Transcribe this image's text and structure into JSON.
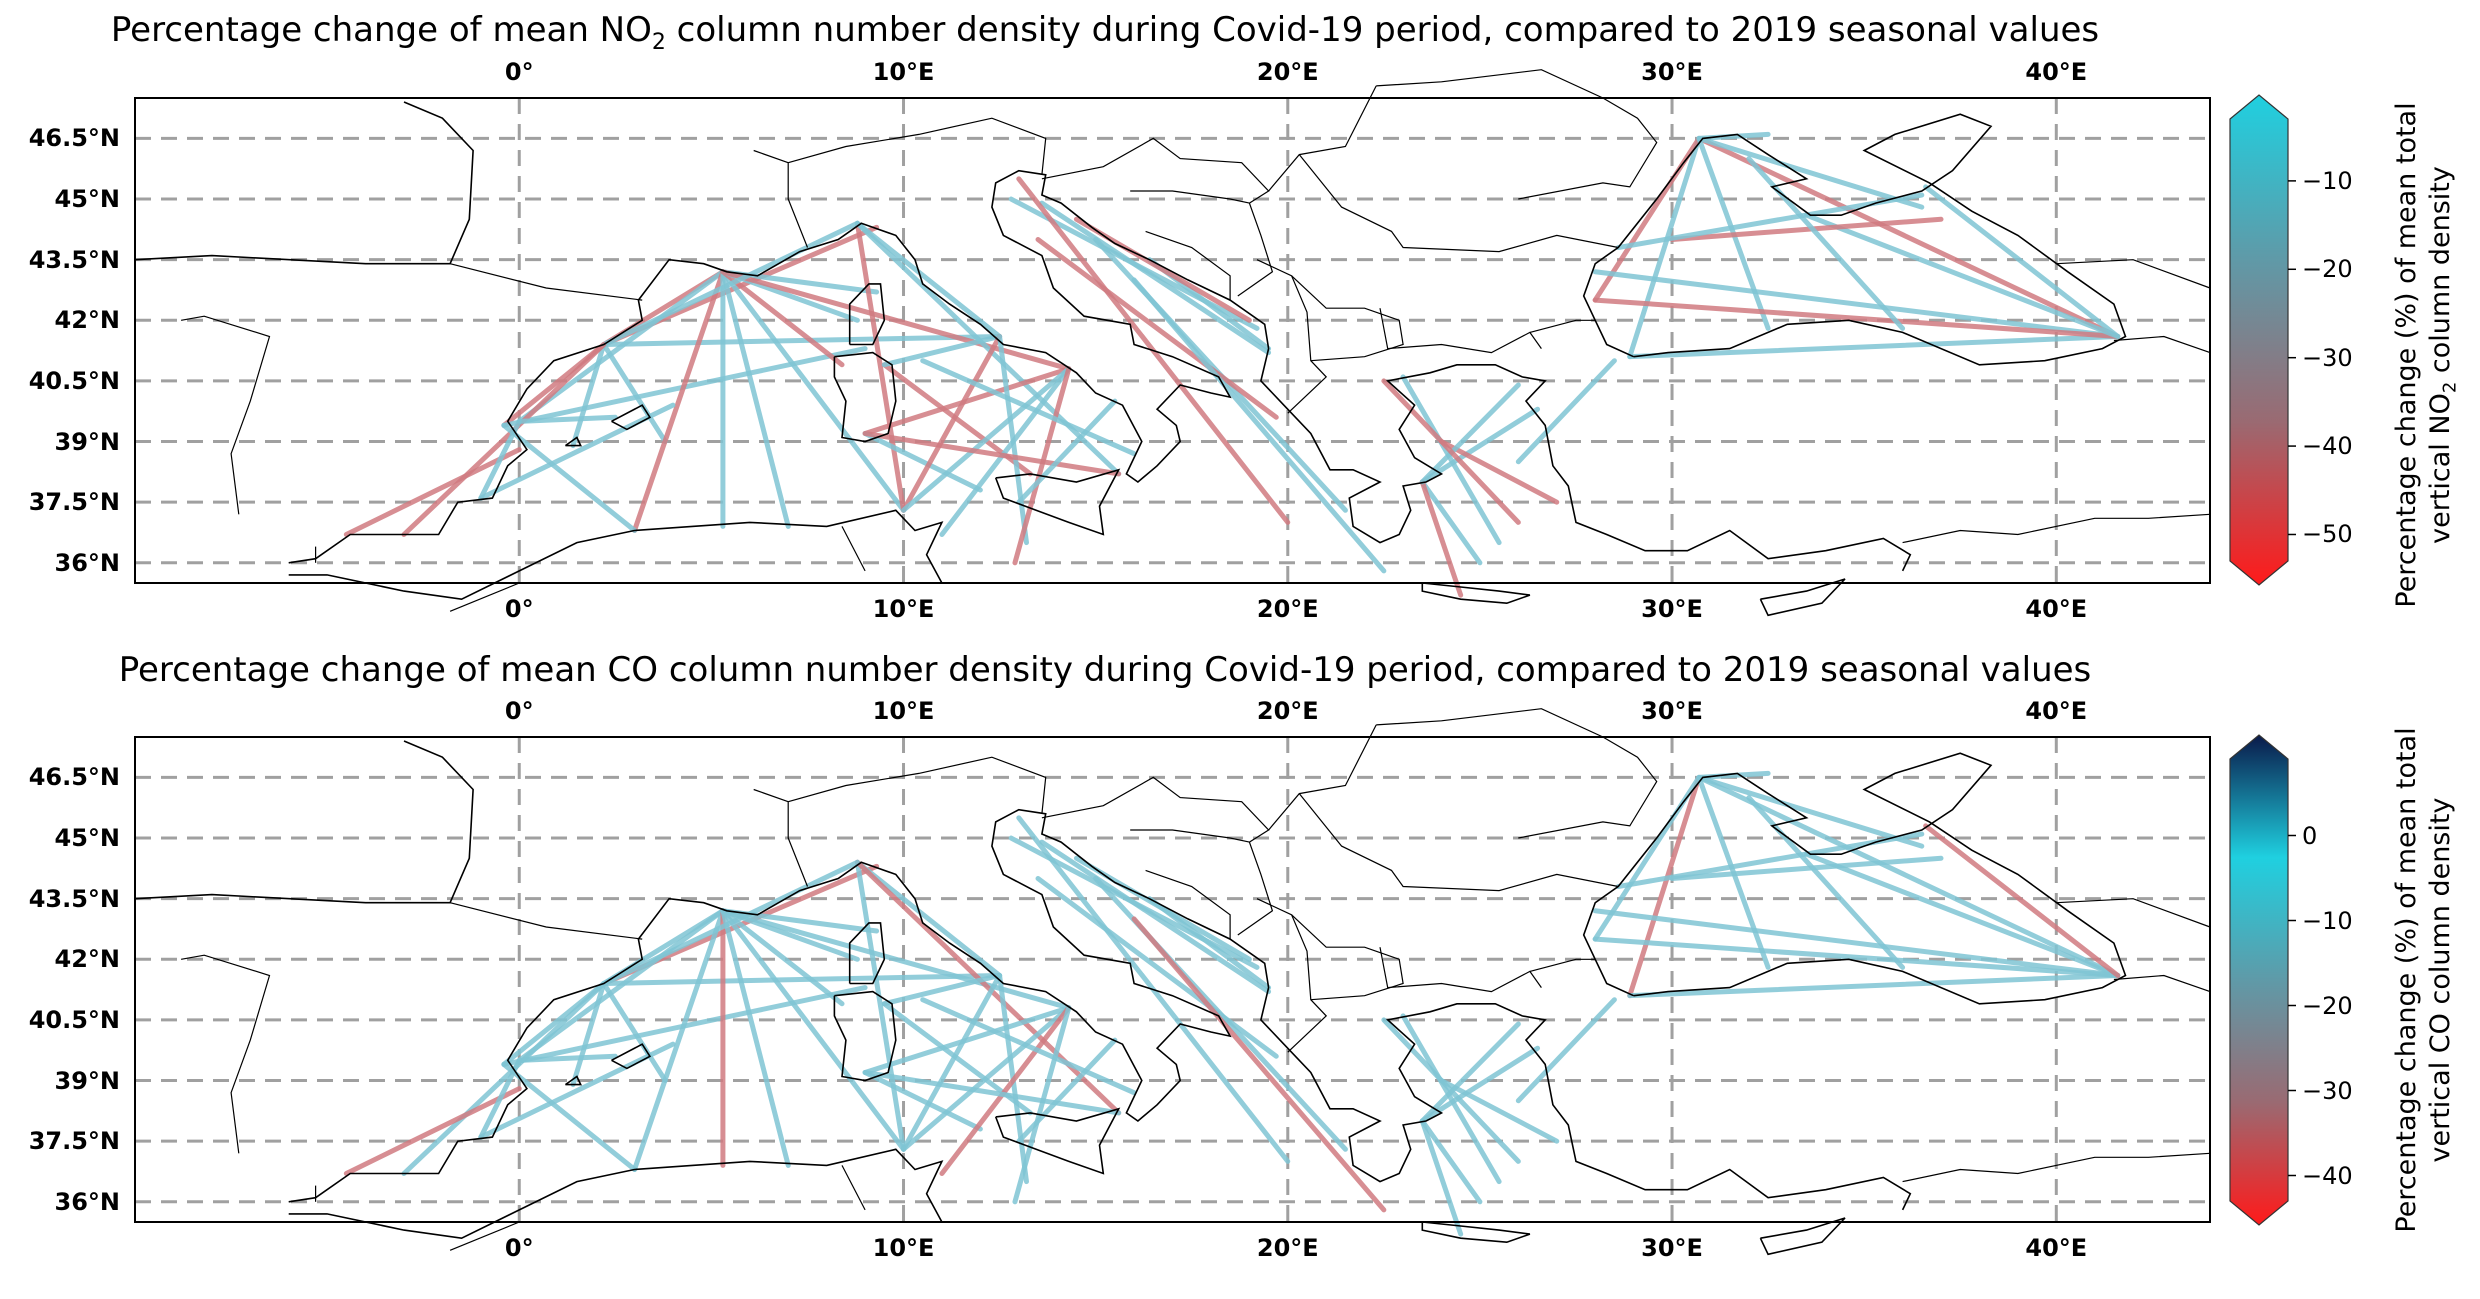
{
  "panels": [
    {
      "title_prefix": "Percentage change of mean NO",
      "title_sub": "2",
      "title_suffix": " column number density during Covid-19 period, compared to 2019 seasonal values",
      "colorbar": {
        "label_line1": "Percentage change (%) of mean total",
        "label_line2_prefix": "vertical NO",
        "label_line2_sub": "2",
        "label_line2_suffix": " column density",
        "ticks": [
          "−10",
          "−20",
          "−30",
          "−40",
          "−50"
        ],
        "tick_values": [
          -10,
          -20,
          -30,
          -40,
          -50
        ],
        "range": [
          -53,
          -3
        ],
        "colors": [
          "#ff1a1a",
          "#9a6a72",
          "#5f9aa8",
          "#1fd0e0"
        ],
        "extend": "max"
      }
    },
    {
      "title_prefix": "Percentage change of mean CO column number density during Covid-19 period, compared to 2019 seasonal values",
      "title_sub": "",
      "title_suffix": "",
      "colorbar": {
        "label_line1": "Percentage change (%) of mean total",
        "label_line2_prefix": "vertical CO column density",
        "label_line2_sub": "",
        "label_line2_suffix": "",
        "ticks": [
          "0",
          "−10",
          "−20",
          "−30",
          "−40"
        ],
        "tick_values": [
          0,
          -10,
          -20,
          -30,
          -40
        ],
        "range": [
          -43,
          9
        ],
        "colors": [
          "#ff1a1a",
          "#9a6a72",
          "#5f9aa8",
          "#1fd0e0",
          "#0a1a4a"
        ],
        "extend": "max"
      }
    }
  ],
  "map": {
    "lon_range": [
      -10,
      44
    ],
    "lat_range": [
      35.5,
      47.5
    ],
    "lon_ticks": [
      "0°",
      "10°E",
      "20°E",
      "30°E",
      "40°E"
    ],
    "lon_tick_values": [
      0,
      10,
      20,
      30,
      40
    ],
    "lat_ticks": [
      "46.5°N",
      "45°N",
      "43.5°N",
      "42°N",
      "40.5°N",
      "39°N",
      "37.5°N",
      "36°N"
    ],
    "lat_tick_values": [
      46.5,
      45,
      43.5,
      42,
      40.5,
      39,
      37.5,
      36
    ],
    "gridlines": "dashed",
    "coastline_color": "#000000",
    "track_color_blue": "#7fc4d4",
    "track_color_red": "#d07a80"
  }
}
